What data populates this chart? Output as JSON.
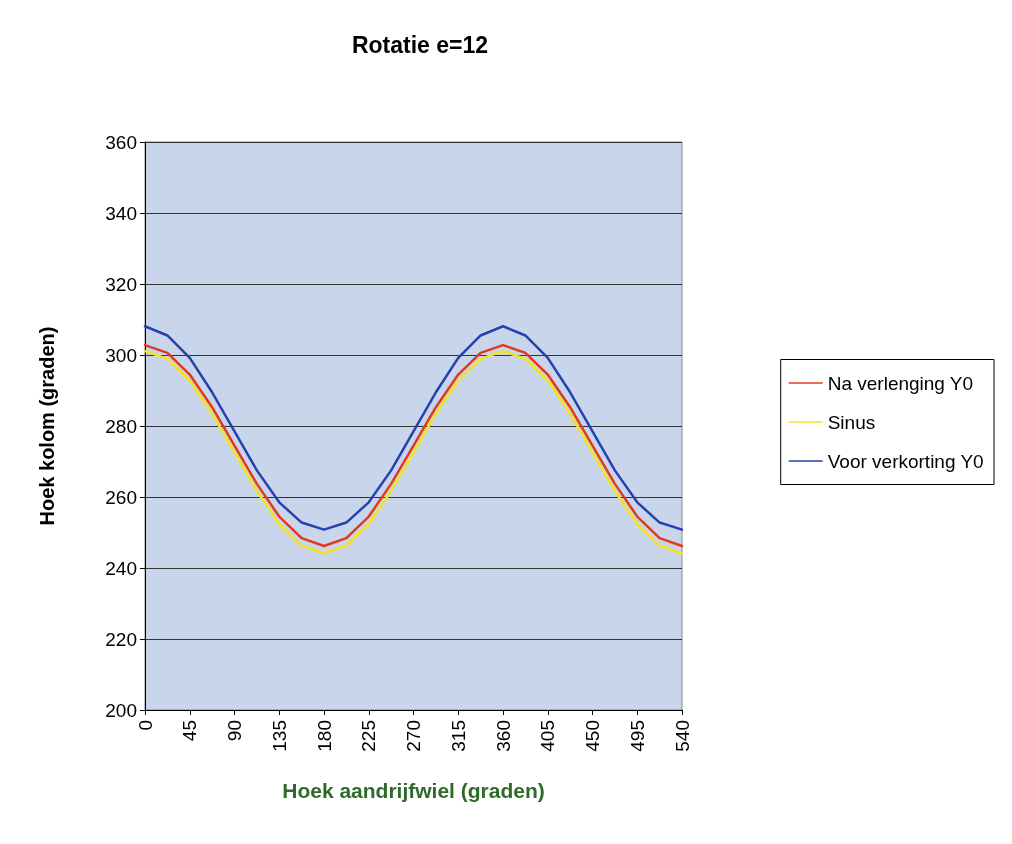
{
  "chart_data": {
    "type": "line",
    "title": "Rotatie e=12",
    "xlabel": "Hoek aandrijfwiel (graden)",
    "ylabel": "Hoek kolom (graden)",
    "x": [
      0,
      22.5,
      45,
      67.5,
      90,
      112.5,
      135,
      157.5,
      180,
      202.5,
      225,
      247.5,
      270,
      292.5,
      315,
      337.5,
      360,
      382.5,
      405,
      427.5,
      450,
      472.5,
      495,
      517.5,
      540
    ],
    "xlim": [
      0,
      540
    ],
    "xticks": [
      0,
      45,
      90,
      135,
      180,
      225,
      270,
      315,
      360,
      405,
      450,
      495,
      540
    ],
    "ylim": [
      200,
      360
    ],
    "yticks": [
      200,
      220,
      240,
      260,
      280,
      300,
      320,
      340,
      360
    ],
    "grid": "y",
    "legend": "right",
    "marker": "none",
    "line_style": "solid",
    "series": [
      {
        "name": "Na verlenging Y0",
        "color": "#e03a22",
        "values": [
          302.8,
          300.6,
          294.5,
          285.3,
          274.5,
          263.7,
          254.5,
          248.4,
          246.2,
          248.4,
          254.5,
          263.7,
          274.5,
          285.3,
          294.5,
          300.6,
          302.8,
          300.6,
          294.5,
          285.3,
          274.5,
          263.7,
          254.5,
          248.4,
          246.2
        ]
      },
      {
        "name": "Sinus",
        "color": "#f2e41c",
        "values": [
          301.1,
          298.9,
          292.8,
          283.5,
          272.6,
          261.7,
          252.4,
          246.3,
          244.1,
          246.3,
          252.4,
          261.7,
          272.6,
          283.5,
          292.8,
          298.9,
          301.1,
          298.9,
          292.8,
          283.5,
          272.6,
          261.7,
          252.4,
          246.3,
          244.1
        ]
      },
      {
        "name": "Voor verkorting Y0",
        "color": "#2742b0",
        "values": [
          308.1,
          305.5,
          299.2,
          289.5,
          278.5,
          267.5,
          258.5,
          252.8,
          250.8,
          252.8,
          258.5,
          267.5,
          278.5,
          289.5,
          299.2,
          305.5,
          308.1,
          305.5,
          299.2,
          289.5,
          278.5,
          267.5,
          258.5,
          252.8,
          250.8
        ]
      }
    ]
  }
}
